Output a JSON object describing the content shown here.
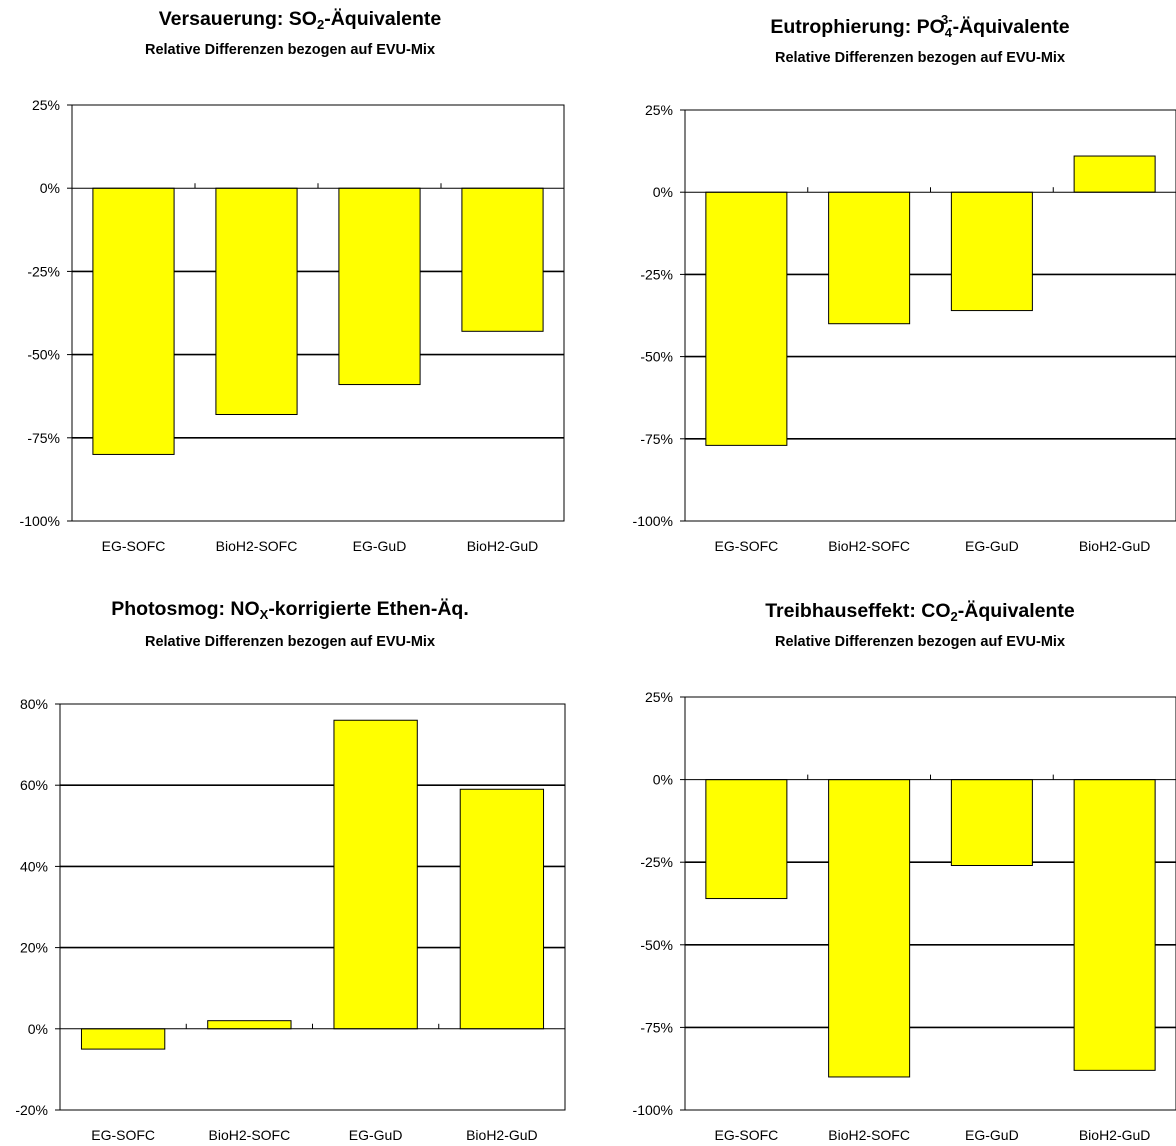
{
  "chart_data": [
    {
      "type": "bar",
      "title_parts": [
        "Versauerung: SO",
        "2",
        "-Äquivalente"
      ],
      "subtitle": "Relative Differenzen bezogen auf EVU-Mix",
      "categories": [
        "EG-SOFC",
        "BioH2-SOFC",
        "EG-GuD",
        "BioH2-GuD"
      ],
      "values": [
        -80,
        -68,
        -59,
        -43
      ],
      "ylim": [
        -100,
        25
      ],
      "yticks": [
        25,
        0,
        -25,
        -50,
        -75,
        -100
      ],
      "ytick_labels": [
        "25%",
        "0%",
        "-25%",
        "-50%",
        "-75%",
        "-100%"
      ],
      "grid": true,
      "bar_color": "#ffff00"
    },
    {
      "type": "bar",
      "title_parts": [
        "Eutrophierung: PO",
        "4",
        "3-",
        "-Äquivalente"
      ],
      "subtitle": "Relative Differenzen bezogen auf EVU-Mix",
      "categories": [
        "EG-SOFC",
        "BioH2-SOFC",
        "EG-GuD",
        "BioH2-GuD"
      ],
      "values": [
        -77,
        -40,
        -36,
        11
      ],
      "ylim": [
        -100,
        25
      ],
      "yticks": [
        25,
        0,
        -25,
        -50,
        -75,
        -100
      ],
      "ytick_labels": [
        "25%",
        "0%",
        "-25%",
        "-50%",
        "-75%",
        "-100%"
      ],
      "grid": true,
      "bar_color": "#ffff00"
    },
    {
      "type": "bar",
      "title_parts": [
        "Photosmog: NO",
        "X",
        "-korrigierte Ethen-Äq."
      ],
      "subtitle": "Relative Differenzen bezogen auf EVU-Mix",
      "categories": [
        "EG-SOFC",
        "BioH2-SOFC",
        "EG-GuD",
        "BioH2-GuD"
      ],
      "values": [
        -5,
        2,
        76,
        59
      ],
      "ylim": [
        -20,
        80
      ],
      "yticks": [
        80,
        60,
        40,
        20,
        0,
        -20
      ],
      "ytick_labels": [
        "80%",
        "60%",
        "40%",
        "20%",
        "0%",
        "-20%"
      ],
      "grid": true,
      "bar_color": "#ffff00"
    },
    {
      "type": "bar",
      "title_parts": [
        "Treibhauseffekt: CO",
        "2",
        "-Äquivalente"
      ],
      "subtitle": "Relative Differenzen bezogen auf EVU-Mix",
      "categories": [
        "EG-SOFC",
        "BioH2-SOFC",
        "EG-GuD",
        "BioH2-GuD"
      ],
      "values": [
        -36,
        -90,
        -26,
        -88
      ],
      "ylim": [
        -100,
        25
      ],
      "yticks": [
        25,
        0,
        -25,
        -50,
        -75,
        -100
      ],
      "ytick_labels": [
        "25%",
        "0%",
        "-25%",
        "-50%",
        "-75%",
        "-100%"
      ],
      "grid": true,
      "bar_color": "#ffff00"
    }
  ]
}
